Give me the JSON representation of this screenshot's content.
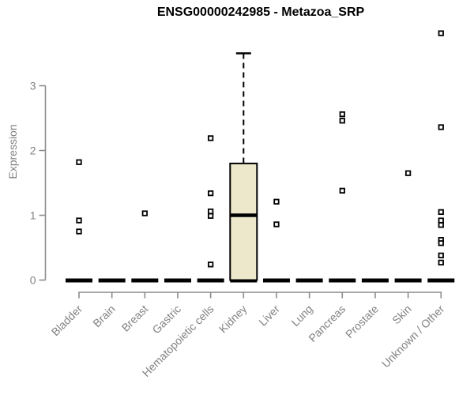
{
  "chart_data": {
    "type": "boxplot",
    "title": "ENSG00000242985 - Metazoa_SRP",
    "ylabel": "Expression",
    "yticks": [
      "0",
      "1",
      "2",
      "3"
    ],
    "ylim": [
      0,
      3.9
    ],
    "grid": false,
    "legend": null,
    "marker": "open-square",
    "categories": [
      "Bladder",
      "Brain",
      "Breast",
      "Gastric",
      "Hematopoietic cells",
      "Kidney",
      "Liver",
      "Lung",
      "Pancreas",
      "Prostate",
      "Skin",
      "Unknown / Other"
    ],
    "series": [
      {
        "category": "Bladder",
        "q1": 0,
        "median": 0,
        "q3": 0,
        "whisker_low": 0,
        "whisker_high": 0,
        "outliers": [
          1.82,
          0.92,
          0.75
        ]
      },
      {
        "category": "Brain",
        "q1": 0,
        "median": 0,
        "q3": 0,
        "whisker_low": 0,
        "whisker_high": 0,
        "outliers": []
      },
      {
        "category": "Breast",
        "q1": 0,
        "median": 0,
        "q3": 0,
        "whisker_low": 0,
        "whisker_high": 0,
        "outliers": [
          1.03
        ]
      },
      {
        "category": "Gastric",
        "q1": 0,
        "median": 0,
        "q3": 0,
        "whisker_low": 0,
        "whisker_high": 0,
        "outliers": []
      },
      {
        "category": "Hematopoietic cells",
        "q1": 0,
        "median": 0,
        "q3": 0,
        "whisker_low": 0,
        "whisker_high": 0,
        "outliers": [
          2.19,
          1.34,
          1.06,
          0.99,
          0.24
        ]
      },
      {
        "category": "Kidney",
        "q1": 0,
        "median": 1.0,
        "q3": 1.8,
        "whisker_low": 0,
        "whisker_high": 3.5,
        "outliers": []
      },
      {
        "category": "Liver",
        "q1": 0,
        "median": 0,
        "q3": 0,
        "whisker_low": 0,
        "whisker_high": 0,
        "outliers": [
          1.21,
          0.86
        ]
      },
      {
        "category": "Lung",
        "q1": 0,
        "median": 0,
        "q3": 0,
        "whisker_low": 0,
        "whisker_high": 0,
        "outliers": []
      },
      {
        "category": "Pancreas",
        "q1": 0,
        "median": 0,
        "q3": 0,
        "whisker_low": 0,
        "whisker_high": 0,
        "outliers": [
          2.56,
          2.46,
          1.38
        ]
      },
      {
        "category": "Prostate",
        "q1": 0,
        "median": 0,
        "q3": 0,
        "whisker_low": 0,
        "whisker_high": 0,
        "outliers": []
      },
      {
        "category": "Skin",
        "q1": 0,
        "median": 0,
        "q3": 0,
        "whisker_low": 0,
        "whisker_high": 0,
        "outliers": [
          1.65
        ]
      },
      {
        "category": "Unknown / Other",
        "q1": 0,
        "median": 0,
        "q3": 0,
        "whisker_low": 0,
        "whisker_high": 0,
        "outliers": [
          3.81,
          2.36,
          1.05,
          0.92,
          0.85,
          0.62,
          0.57,
          0.38,
          0.27
        ]
      }
    ]
  },
  "colors": {
    "background": "#FFFFFF",
    "box_fill": "#EDE7CB",
    "axis_line": "#8C8C8C",
    "axis_text": "#828282",
    "data_black": "#000000"
  }
}
